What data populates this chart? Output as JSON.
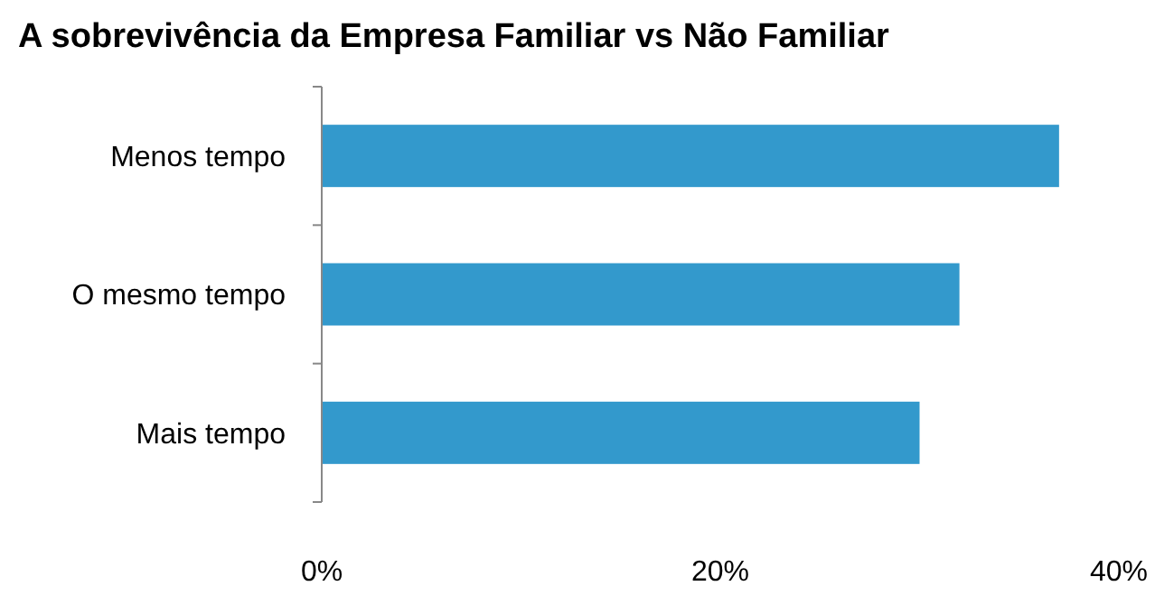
{
  "chart_data": {
    "type": "bar",
    "orientation": "horizontal",
    "title": "A sobrevivência da Empresa Familiar vs Não Familiar",
    "categories": [
      "Menos tempo",
      "O mesmo tempo",
      "Mais tempo"
    ],
    "values": [
      37,
      32,
      30
    ],
    "color": "#3399cc",
    "xlim": [
      0,
      40
    ],
    "xticks": [
      {
        "value": 0,
        "label": "0%"
      },
      {
        "value": 20,
        "label": "20%"
      },
      {
        "value": 40,
        "label": "40%"
      }
    ],
    "grid": false
  }
}
